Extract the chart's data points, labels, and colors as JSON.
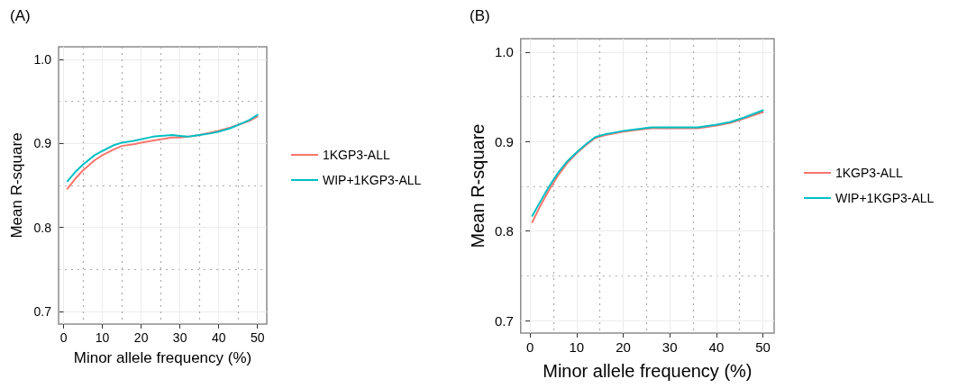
{
  "chart_data": [
    {
      "type": "line",
      "title": "(A)",
      "xlabel": "Minor allele frequency (%)",
      "ylabel": "Mean R-square",
      "xlim": [
        -1.3,
        52.4
      ],
      "xticks": [
        0,
        10,
        20,
        30,
        40,
        50
      ],
      "ylim": [
        0.685,
        1.015
      ],
      "yticks": [
        0.7,
        0.8,
        0.9,
        {
          "value": 1,
          "label": "1.0"
        }
      ],
      "grid": true,
      "legend": "right",
      "marker": "none",
      "line_style": "solid",
      "series": [
        {
          "name": "1KGP3-ALL",
          "color": "#f8766d",
          "x": [
            1,
            3,
            5,
            8,
            10,
            13,
            15,
            18,
            20,
            25,
            28,
            30,
            32,
            35,
            38,
            40,
            43,
            45,
            48,
            50
          ],
          "values": [
            0.846,
            0.858,
            0.868,
            0.88,
            0.886,
            0.893,
            0.897,
            0.899,
            0.901,
            0.905,
            0.907,
            0.907,
            0.908,
            0.91,
            0.913,
            0.915,
            0.919,
            0.922,
            0.927,
            0.932
          ]
        },
        {
          "name": "WIP+1KGP3-ALL",
          "color": "#00bfc4",
          "x": [
            1,
            3,
            5,
            8,
            10,
            13,
            15,
            18,
            20,
            23,
            25,
            28,
            30,
            32,
            35,
            38,
            40,
            43,
            45,
            48,
            50
          ],
          "values": [
            0.855,
            0.866,
            0.875,
            0.886,
            0.891,
            0.898,
            0.901,
            0.903,
            0.905,
            0.908,
            0.909,
            0.91,
            0.909,
            0.908,
            0.91,
            0.912,
            0.914,
            0.918,
            0.922,
            0.928,
            0.934
          ]
        }
      ]
    },
    {
      "type": "line",
      "title": "(B)",
      "xlabel": "Minor allele frequency (%)",
      "ylabel": "Mean R-square",
      "xlim": [
        -2,
        52.4
      ],
      "xticks": [
        0,
        10,
        20,
        30,
        40,
        50
      ],
      "ylim": [
        0.686,
        1.015
      ],
      "yticks": [
        0.7,
        0.8,
        0.9,
        {
          "value": 1,
          "label": "1.0"
        }
      ],
      "grid": true,
      "legend": "right",
      "marker": "none",
      "line_style": "solid",
      "series": [
        {
          "name": "1KGP3-ALL",
          "color": "#f8766d",
          "x": [
            0.5,
            2,
            4,
            6,
            8,
            10,
            12,
            14,
            16,
            18,
            20,
            23,
            26,
            30,
            33,
            36,
            40,
            43,
            46,
            50
          ],
          "values": [
            0.81,
            0.826,
            0.845,
            0.862,
            0.876,
            0.887,
            0.896,
            0.904,
            0.907,
            0.909,
            0.911,
            0.913,
            0.915,
            0.915,
            0.915,
            0.915,
            0.918,
            0.921,
            0.926,
            0.933
          ]
        },
        {
          "name": "WIP+1KGP3-ALL",
          "color": "#00bfc4",
          "x": [
            0.5,
            2,
            4,
            6,
            8,
            10,
            12,
            14,
            16,
            18,
            20,
            23,
            26,
            30,
            33,
            36,
            40,
            43,
            46,
            50
          ],
          "values": [
            0.817,
            0.831,
            0.849,
            0.865,
            0.878,
            0.888,
            0.897,
            0.905,
            0.908,
            0.91,
            0.912,
            0.914,
            0.916,
            0.916,
            0.916,
            0.916,
            0.919,
            0.922,
            0.927,
            0.935
          ]
        }
      ]
    }
  ]
}
